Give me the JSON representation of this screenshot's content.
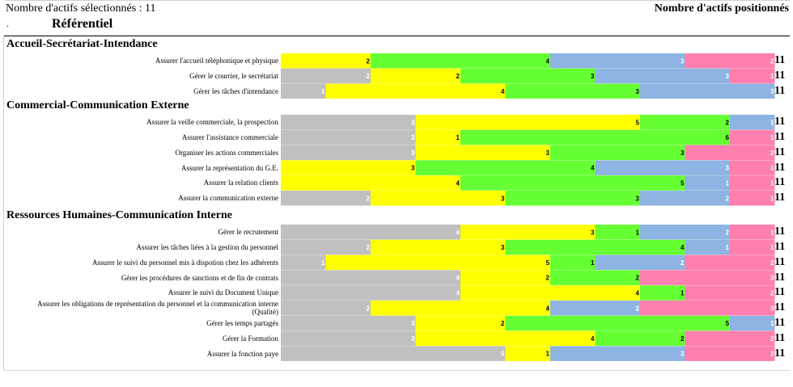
{
  "header": {
    "selected_label": "Nombre d'actifs sélectionnés : 11",
    "positioned_label": "Nombre d'actifs positionnés",
    "dot": ".",
    "referentiel": "Référentiel"
  },
  "colors": {
    "gray": "#c0c0c0",
    "yellow": "#ffff00",
    "green": "#66ff33",
    "blue": "#8db4e2",
    "pink": "#ff7faf"
  },
  "chart_data": {
    "type": "bar",
    "orientation": "horizontal",
    "stacked": true,
    "legend": "none",
    "series_colors": [
      "gray",
      "yellow",
      "green",
      "blue",
      "pink"
    ],
    "sections": [
      {
        "title": "Accueil-Secrétariat-Intendance",
        "rows": [
          {
            "label": "Assurer l'accueil téléphonique et physique",
            "values": [
              0,
              2,
              4,
              3,
              2
            ],
            "total": "11"
          },
          {
            "label": "Gérer le courrier, le secrétariat",
            "values": [
              2,
              2,
              3,
              3,
              1
            ],
            "total": "11"
          },
          {
            "label": "Gérer les tâches d'intendance",
            "values": [
              1,
              4,
              3,
              3,
              0
            ],
            "total": "11"
          }
        ]
      },
      {
        "title": "Commercial-Communication Externe",
        "rows": [
          {
            "label": "Assurer la veille commerciale, la prospection",
            "values": [
              3,
              5,
              2,
              1,
              0
            ],
            "total": "11"
          },
          {
            "label": "Assurer l'assistance commerciale",
            "values": [
              3,
              1,
              6,
              0,
              1
            ],
            "total": "11"
          },
          {
            "label": "Organiser les actions commerciales",
            "values": [
              3,
              3,
              3,
              0,
              2
            ],
            "total": "11"
          },
          {
            "label": "Assurer la représentation du G.E.",
            "values": [
              0,
              3,
              4,
              3,
              1
            ],
            "total": "11"
          },
          {
            "label": "Assurer la relation clients",
            "values": [
              0,
              4,
              5,
              1,
              1
            ],
            "total": "11"
          },
          {
            "label": "Assurer la communication externe",
            "values": [
              2,
              3,
              3,
              2,
              1
            ],
            "total": "11"
          }
        ]
      },
      {
        "title": "Ressources Humaines-Communication Interne",
        "rows": [
          {
            "label": "Gérer le recrutement",
            "values": [
              4,
              3,
              1,
              2,
              1
            ],
            "total": "11"
          },
          {
            "label": "Assurer les tâches liées à la gestion du personnel",
            "values": [
              2,
              3,
              4,
              1,
              1
            ],
            "total": "11"
          },
          {
            "label": "Assurer le suivi du personnel mis à dispotion chez les adhérents",
            "values": [
              1,
              5,
              1,
              2,
              2
            ],
            "total": "11"
          },
          {
            "label": "Gérer les procédures de sanctions et de fin de contrats",
            "values": [
              4,
              2,
              2,
              0,
              3
            ],
            "total": "11"
          },
          {
            "label": "Assurer le suivi du Document Unique",
            "values": [
              4,
              4,
              1,
              0,
              2
            ],
            "total": "11"
          },
          {
            "label": "Assurer les obligations de représentation du personnel et la communication interne (Qualité)",
            "values": [
              2,
              4,
              0,
              2,
              3
            ],
            "total": "11"
          },
          {
            "label": "Gérer les temps partagés",
            "values": [
              3,
              2,
              5,
              1,
              0
            ],
            "total": "11"
          },
          {
            "label": "Gérer la Formation",
            "values": [
              3,
              4,
              2,
              0,
              2
            ],
            "total": "11"
          },
          {
            "label": "Assurer la fonction paye",
            "values": [
              5,
              1,
              0,
              3,
              2
            ],
            "total": "11"
          }
        ]
      }
    ]
  }
}
